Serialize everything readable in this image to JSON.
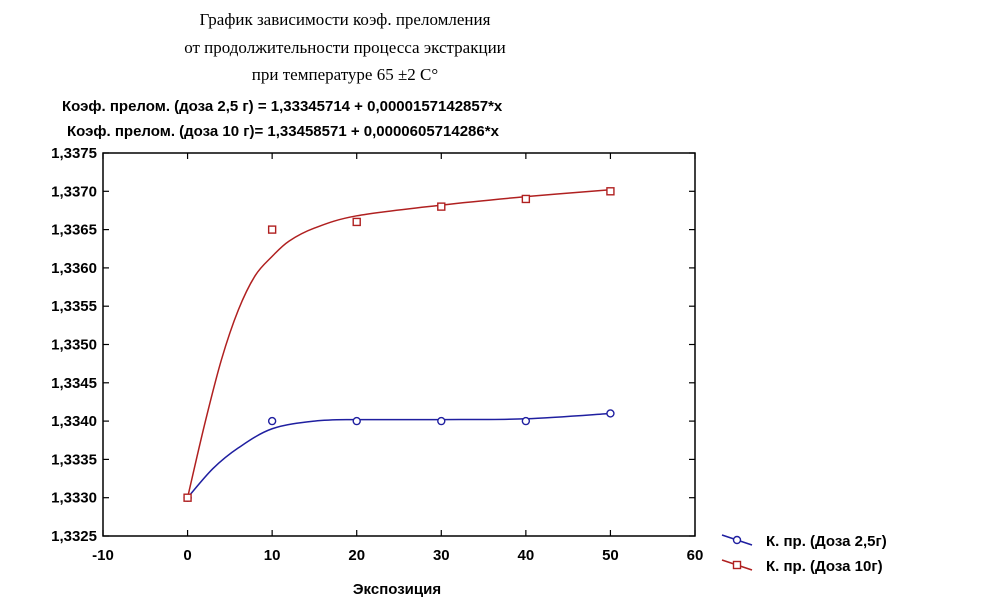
{
  "chart_data": {
    "type": "scatter",
    "title_lines": [
      "График зависимости коэф. преломления",
      "от продолжительности процесса экстракции",
      "при температуре 65    ±2 С°"
    ],
    "equations": [
      "Коэф. прелом. (доза 2,5 г) = 1,33345714 + 0,0000157142857*x",
      "Коэф. прелом. (доза 10 г)=  1,33458571 + 0,0000605714286*x"
    ],
    "xlabel": "Экспозиция",
    "ylabel": "",
    "xlim": [
      -10,
      60
    ],
    "ylim": [
      1.3325,
      1.3375
    ],
    "x_ticks": [
      -10,
      0,
      10,
      20,
      30,
      40,
      50,
      60
    ],
    "x_tick_labels": [
      "-10",
      "0",
      "10",
      "20",
      "30",
      "40",
      "50",
      "60"
    ],
    "y_ticks": [
      1.3325,
      1.333,
      1.3335,
      1.334,
      1.3345,
      1.335,
      1.3355,
      1.336,
      1.3365,
      1.337,
      1.3375
    ],
    "y_tick_labels": [
      "1,3325",
      "1,3330",
      "1,3335",
      "1,3340",
      "1,3345",
      "1,3350",
      "1,3355",
      "1,3360",
      "1,3365",
      "1,3370",
      "1,3375"
    ],
    "legend_position": "bottom-right",
    "series": [
      {
        "name": "К. пр. (Доза 2,5г)",
        "color": "#1f1fa0",
        "marker": "circle",
        "x": [
          0,
          10,
          20,
          30,
          40,
          50
        ],
        "y": [
          1.333,
          1.334,
          1.334,
          1.334,
          1.334,
          1.3341
        ],
        "fit_x": [
          0,
          3,
          6,
          10,
          15,
          20,
          30,
          40,
          50
        ],
        "fit_y": [
          1.333,
          1.33338,
          1.33365,
          1.3339,
          1.334,
          1.33402,
          1.33402,
          1.33403,
          1.3341
        ]
      },
      {
        "name": "К. пр. (Доза 10г)",
        "color": "#b02020",
        "marker": "square",
        "x": [
          0,
          10,
          20,
          30,
          40,
          50
        ],
        "y": [
          1.333,
          1.3365,
          1.3366,
          1.3368,
          1.3369,
          1.337
        ],
        "fit_x": [
          0,
          2,
          4,
          6,
          8,
          10,
          12,
          15,
          20,
          30,
          40,
          50
        ],
        "fit_y": [
          1.333,
          1.33395,
          1.3348,
          1.33545,
          1.3359,
          1.33615,
          1.33635,
          1.33652,
          1.33668,
          1.33682,
          1.33693,
          1.33702
        ]
      }
    ]
  }
}
